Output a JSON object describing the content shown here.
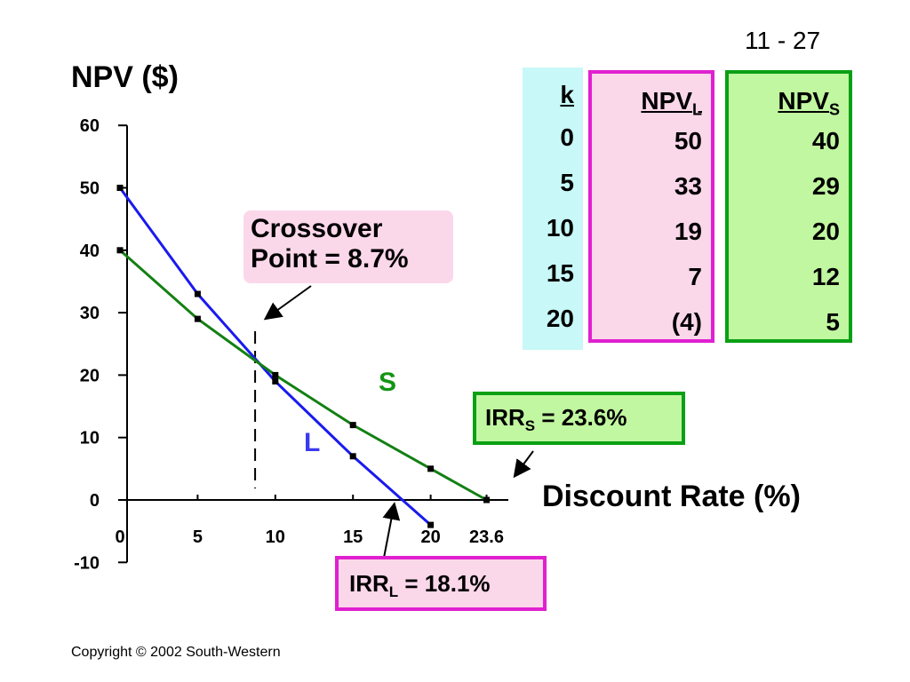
{
  "slide_number": "11 - 27",
  "copyright": "Copyright © 2002 South-Western",
  "colors": {
    "project_l": "#1a1aee",
    "project_s": "#138013",
    "magenta": "#e020d0",
    "green_border": "#0aa015",
    "pink_fill": "#fbd7ea",
    "green_fill": "#c1f7a0",
    "cyan_fill": "#c8f8f8"
  },
  "chart_data": {
    "type": "line",
    "ylabel": "NPV ($)",
    "xlabel": "Discount Rate (%)",
    "xlim": [
      0,
      25
    ],
    "ylim": [
      -10,
      60
    ],
    "x_ticks": [
      0,
      5,
      10,
      15,
      20,
      23.6
    ],
    "x_tick_labels": [
      "0",
      "5",
      "10",
      "15",
      "20",
      "23.6"
    ],
    "y_ticks": [
      -10,
      0,
      10,
      20,
      30,
      40,
      50,
      60
    ],
    "y_tick_labels": [
      "-10",
      "0",
      "10",
      "20",
      "30",
      "40",
      "50",
      "60"
    ],
    "grid": false,
    "series": [
      {
        "name": "L",
        "x": [
          0,
          5,
          10,
          15,
          20
        ],
        "y": [
          50,
          33,
          19,
          7,
          -4
        ]
      },
      {
        "name": "S",
        "x": [
          0,
          5,
          10,
          15,
          20,
          23.6
        ],
        "y": [
          40,
          29,
          20,
          12,
          5,
          0
        ]
      }
    ],
    "crossover": {
      "x": 8.7,
      "y": 22
    },
    "irr_l": 18.1,
    "irr_s": 23.6,
    "annotations": {
      "crossover_line1": "Crossover",
      "crossover_line2": "Point  =  8.7%",
      "irr_s_prefix": "IRR",
      "irr_s_sub": "S",
      "irr_s_value": " = 23.6%",
      "irr_l_prefix": "IRR",
      "irr_l_sub": "L",
      "irr_l_value": " = 18.1%",
      "series_label_s": "S",
      "series_label_l": "L"
    }
  },
  "table": {
    "k_header": "k",
    "npvl_header": "NPV",
    "npvl_sub": "L",
    "npvs_header": "NPV",
    "npvs_sub": "S",
    "k": [
      "0",
      "5",
      "10",
      "15",
      "20"
    ],
    "npv_l": [
      "50",
      "33",
      "19",
      "7",
      "(4)"
    ],
    "npv_s": [
      "40",
      "29",
      "20",
      "12",
      "5"
    ]
  }
}
